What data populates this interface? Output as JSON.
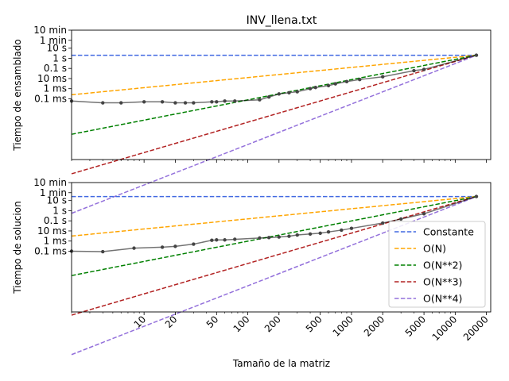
{
  "chart_data": [
    {
      "type": "line",
      "title": "INV_llena.txt",
      "xlabel": "",
      "ylabel": "Tiempo de ensamblado",
      "x_scale": "log",
      "y_scale": "log",
      "y_unit": "seconds",
      "xlim": [
        2,
        22000
      ],
      "ylim": [
        1e-10,
        600
      ],
      "x_ticks": [
        10,
        20,
        50,
        100,
        200,
        500,
        1000,
        2000,
        5000,
        10000,
        20000
      ],
      "x_tick_labels": [
        "10",
        "20",
        "50",
        "100",
        "200",
        "500",
        "1000",
        "2000",
        "5000",
        "10000",
        "20000"
      ],
      "x_tick_labels_visible": false,
      "y_ticks": [
        0.0001,
        0.001,
        0.01,
        0.1,
        1,
        10,
        60,
        600
      ],
      "y_tick_labels": [
        "0.1 ms",
        "1 ms",
        "10 ms",
        "0.1 s",
        "1 s",
        "10 s",
        "1 min",
        "10 min"
      ],
      "grid": false,
      "legend": "none",
      "measured": {
        "name": "",
        "color": "#000000",
        "x": [
          2,
          4,
          6,
          10,
          15,
          20,
          25,
          30,
          45,
          50,
          60,
          75,
          130,
          160,
          200,
          250,
          300,
          400,
          450,
          600,
          700,
          900,
          1200,
          2000,
          4000,
          5000,
          16000
        ],
        "y": [
          6e-05,
          4e-05,
          4e-05,
          5e-05,
          5e-05,
          4e-05,
          4e-05,
          4e-05,
          5e-05,
          5e-05,
          6e-05,
          6e-05,
          8e-05,
          0.00015,
          0.0003,
          0.0004,
          0.0005,
          0.001,
          0.0013,
          0.002,
          0.003,
          0.005,
          0.008,
          0.015,
          0.06,
          0.08,
          2
        ]
      },
      "reference": {
        "anchor_x": 16000,
        "anchor_y": 2,
        "x_start": 2,
        "series": [
          {
            "name": "Constante",
            "power": 0,
            "color": "#4169e1"
          },
          {
            "name": "O(N)",
            "power": 1,
            "color": "#ffa500"
          },
          {
            "name": "O(N**2)",
            "power": 2,
            "color": "#008000"
          },
          {
            "name": "O(N**3)",
            "power": 3,
            "color": "#b22222"
          },
          {
            "name": "O(N**4)",
            "power": 4,
            "color": "#9370db"
          }
        ]
      }
    },
    {
      "type": "line",
      "title": "",
      "xlabel": "Tamaño de la matriz",
      "ylabel": "Tiempo de solucion",
      "x_scale": "log",
      "y_scale": "log",
      "y_unit": "seconds",
      "xlim": [
        2,
        22000
      ],
      "ylim": [
        1e-10,
        600
      ],
      "x_ticks": [
        10,
        20,
        50,
        100,
        200,
        500,
        1000,
        2000,
        5000,
        10000,
        20000
      ],
      "x_tick_labels": [
        "10",
        "20",
        "50",
        "100",
        "200",
        "500",
        "1000",
        "2000",
        "5000",
        "10000",
        "20000"
      ],
      "x_tick_labels_visible": true,
      "y_ticks": [
        0.0001,
        0.001,
        0.01,
        0.1,
        1,
        10,
        60,
        600
      ],
      "y_tick_labels": [
        "0.1 ms",
        "1 ms",
        "10 ms",
        "0.1 s",
        "1 s",
        "10 s",
        "1 min",
        "10 min"
      ],
      "grid": false,
      "legend": "lower-right",
      "measured": {
        "name": "",
        "color": "#000000",
        "x": [
          2,
          4,
          8,
          15,
          20,
          30,
          45,
          50,
          60,
          75,
          130,
          160,
          200,
          250,
          300,
          400,
          500,
          600,
          800,
          1000,
          2000,
          3000,
          5000,
          16000
        ],
        "y": [
          0.0001,
          9e-05,
          0.0002,
          0.00025,
          0.0003,
          0.0005,
          0.0012,
          0.0013,
          0.0013,
          0.0015,
          0.002,
          0.0022,
          0.0025,
          0.003,
          0.004,
          0.005,
          0.006,
          0.008,
          0.012,
          0.018,
          0.06,
          0.15,
          0.5,
          25
        ]
      },
      "reference": {
        "anchor_x": 16000,
        "anchor_y": 25,
        "x_start": 2,
        "series": [
          {
            "name": "Constante",
            "power": 0,
            "color": "#4169e1"
          },
          {
            "name": "O(N)",
            "power": 1,
            "color": "#ffa500"
          },
          {
            "name": "O(N**2)",
            "power": 2,
            "color": "#008000"
          },
          {
            "name": "O(N**3)",
            "power": 3,
            "color": "#b22222"
          },
          {
            "name": "O(N**4)",
            "power": 4,
            "color": "#9370db"
          }
        ]
      }
    }
  ]
}
